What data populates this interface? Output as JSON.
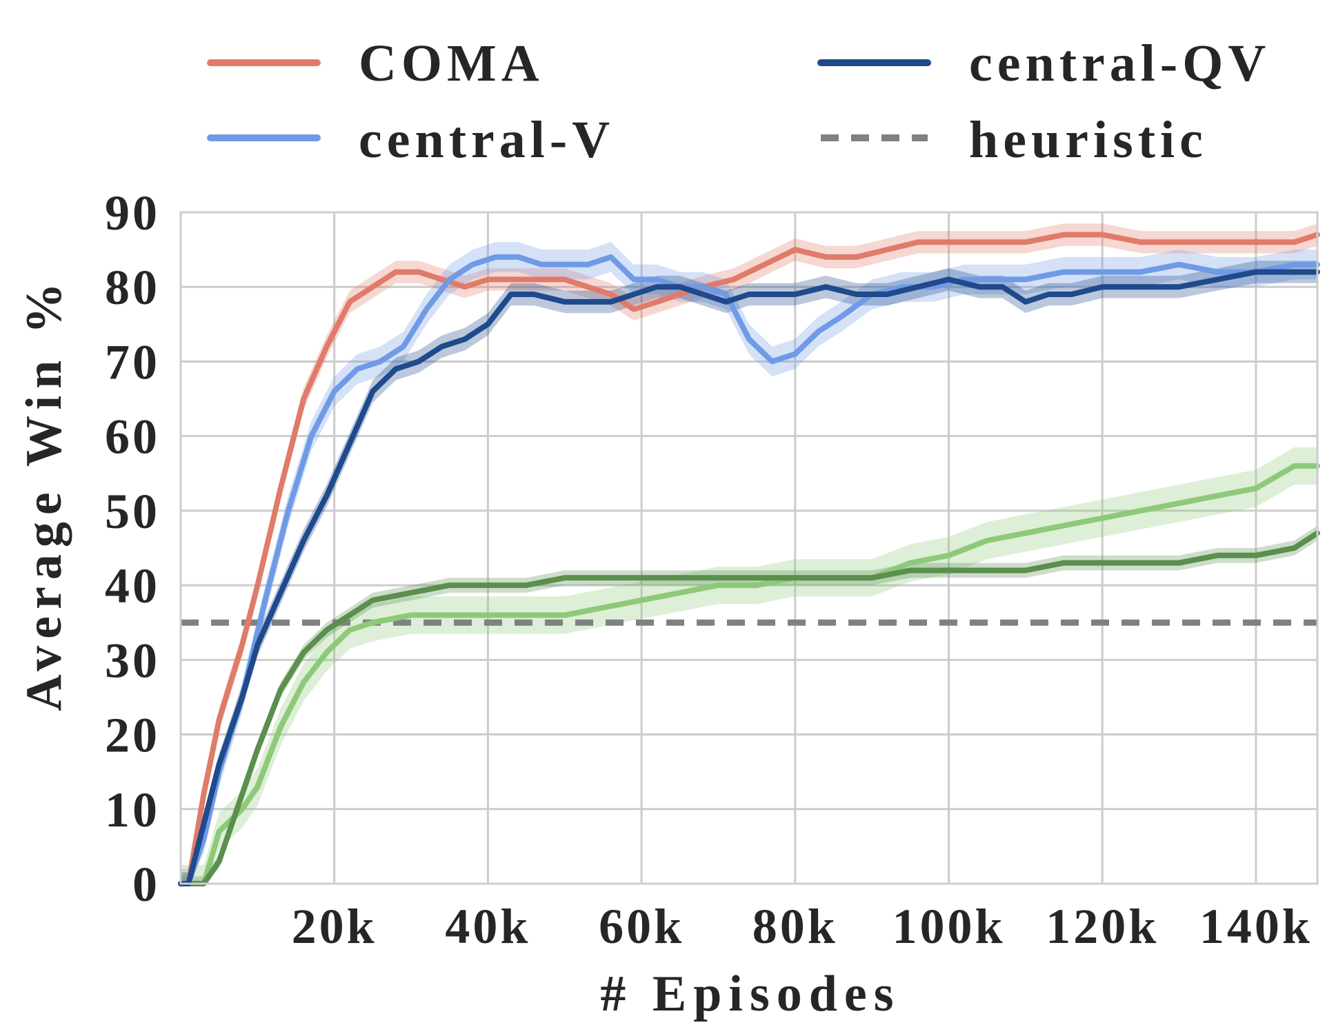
{
  "chart_data": {
    "type": "line",
    "title": "",
    "xlabel": "# Episodes",
    "ylabel": "Average Win %",
    "xlim": [
      0,
      148000
    ],
    "ylim": [
      0,
      90
    ],
    "xticks": [
      20000,
      40000,
      60000,
      80000,
      100000,
      120000,
      140000
    ],
    "xtick_labels": [
      "20k",
      "40k",
      "60k",
      "80k",
      "100k",
      "120k",
      "140k"
    ],
    "yticks": [
      0,
      10,
      20,
      30,
      40,
      50,
      60,
      70,
      80,
      90
    ],
    "ytick_labels": [
      "0",
      "10",
      "20",
      "30",
      "40",
      "50",
      "60",
      "70",
      "80",
      "90"
    ],
    "grid": true,
    "legend_position": "top",
    "legend": [
      "COMA",
      "central-QV",
      "central-V",
      "heuristic"
    ],
    "colors": {
      "coma": "#e07b6a",
      "central_v": "#6f9ae6",
      "central_qv": "#1f4a8c",
      "green_light": "#8ec97a",
      "green_dark": "#5a8f4e",
      "heuristic": "#808080"
    },
    "series": [
      {
        "name": "COMA",
        "color": "#e07b6a",
        "band": 1.5,
        "x": [
          0,
          1000,
          3000,
          5000,
          8000,
          10000,
          13000,
          16000,
          19000,
          22000,
          25000,
          28000,
          31000,
          34000,
          37000,
          40000,
          43000,
          46000,
          50000,
          53000,
          56000,
          59000,
          62000,
          65000,
          68000,
          72000,
          76000,
          80000,
          84000,
          88000,
          92000,
          96000,
          100000,
          105000,
          110000,
          115000,
          120000,
          125000,
          130000,
          135000,
          140000,
          145000,
          148000
        ],
        "values": [
          0,
          0,
          12,
          22,
          32,
          40,
          53,
          65,
          72,
          78,
          80,
          82,
          82,
          81,
          80,
          81,
          81,
          81,
          81,
          80,
          79,
          77,
          78,
          79,
          80,
          81,
          83,
          85,
          84,
          84,
          85,
          86,
          86,
          86,
          86,
          87,
          87,
          86,
          86,
          86,
          86,
          86,
          87
        ]
      },
      {
        "name": "central-V",
        "color": "#6f9ae6",
        "band": 2.0,
        "x": [
          0,
          1000,
          3000,
          5000,
          8000,
          11000,
          14000,
          17000,
          20000,
          23000,
          26000,
          29000,
          32000,
          35000,
          38000,
          41000,
          44000,
          47000,
          50000,
          53000,
          56000,
          59000,
          62000,
          65000,
          68000,
          71000,
          74000,
          77000,
          80000,
          83000,
          86000,
          90000,
          94000,
          98000,
          102000,
          106000,
          110000,
          115000,
          120000,
          125000,
          130000,
          135000,
          140000,
          145000,
          148000
        ],
        "values": [
          0,
          0,
          6,
          15,
          25,
          38,
          50,
          60,
          66,
          69,
          70,
          72,
          77,
          81,
          83,
          84,
          84,
          83,
          83,
          83,
          84,
          81,
          81,
          80,
          80,
          79,
          73,
          70,
          71,
          74,
          76,
          79,
          80,
          80,
          81,
          81,
          81,
          82,
          82,
          82,
          83,
          82,
          82,
          83,
          83
        ]
      },
      {
        "name": "central-QV",
        "color": "#1f4a8c",
        "band": 1.5,
        "x": [
          0,
          1000,
          3000,
          5000,
          8000,
          10000,
          13000,
          16000,
          19000,
          22000,
          25000,
          28000,
          31000,
          34000,
          37000,
          40000,
          43000,
          46000,
          50000,
          53000,
          56000,
          59000,
          62000,
          65000,
          68000,
          71000,
          74000,
          77000,
          80000,
          84000,
          88000,
          92000,
          96000,
          100000,
          104000,
          107000,
          110000,
          113000,
          116000,
          120000,
          125000,
          130000,
          135000,
          140000,
          145000,
          148000
        ],
        "values": [
          0,
          0,
          8,
          16,
          25,
          32,
          39,
          46,
          52,
          59,
          66,
          69,
          70,
          72,
          73,
          75,
          79,
          79,
          78,
          78,
          78,
          79,
          80,
          80,
          79,
          78,
          79,
          79,
          79,
          80,
          79,
          79,
          80,
          81,
          80,
          80,
          78,
          79,
          79,
          80,
          80,
          80,
          81,
          82,
          82,
          82
        ]
      },
      {
        "name": "",
        "color": "#8ec97a",
        "band": 2.5,
        "x": [
          0,
          1000,
          3000,
          5000,
          8000,
          10000,
          13000,
          16000,
          19000,
          22000,
          25000,
          30000,
          35000,
          40000,
          45000,
          50000,
          55000,
          60000,
          65000,
          70000,
          75000,
          80000,
          85000,
          90000,
          95000,
          100000,
          105000,
          110000,
          115000,
          120000,
          125000,
          130000,
          135000,
          140000,
          145000,
          148000
        ],
        "values": [
          0,
          0,
          0,
          7,
          10,
          13,
          21,
          27,
          31,
          34,
          35,
          36,
          36,
          36,
          36,
          36,
          37,
          38,
          39,
          40,
          40,
          41,
          41,
          41,
          43,
          44,
          46,
          47,
          48,
          49,
          50,
          51,
          52,
          53,
          56,
          56
        ]
      },
      {
        "name": "",
        "color": "#5a8f4e",
        "band": 1.0,
        "x": [
          0,
          1000,
          3000,
          5000,
          8000,
          10000,
          13000,
          16000,
          19000,
          22000,
          25000,
          30000,
          35000,
          40000,
          45000,
          50000,
          55000,
          60000,
          65000,
          70000,
          75000,
          80000,
          85000,
          90000,
          95000,
          100000,
          105000,
          110000,
          115000,
          120000,
          125000,
          130000,
          135000,
          140000,
          145000,
          148000
        ],
        "values": [
          0,
          0,
          0,
          3,
          12,
          18,
          26,
          31,
          34,
          36,
          38,
          39,
          40,
          40,
          40,
          41,
          41,
          41,
          41,
          41,
          41,
          41,
          41,
          41,
          42,
          42,
          42,
          42,
          43,
          43,
          43,
          43,
          44,
          44,
          45,
          47
        ]
      }
    ],
    "reference_lines": [
      {
        "name": "heuristic",
        "value": 35,
        "color": "#808080",
        "style": "dashed"
      }
    ]
  },
  "legend": {
    "items": [
      {
        "key": "coma",
        "label": "COMA",
        "color": "#e07b6a",
        "style": "solid"
      },
      {
        "key": "central-qv",
        "label": "central-QV",
        "color": "#1f4a8c",
        "style": "solid"
      },
      {
        "key": "central-v",
        "label": "central-V",
        "color": "#6f9ae6",
        "style": "solid"
      },
      {
        "key": "heuristic",
        "label": "heuristic",
        "color": "#808080",
        "style": "dashed"
      }
    ]
  }
}
